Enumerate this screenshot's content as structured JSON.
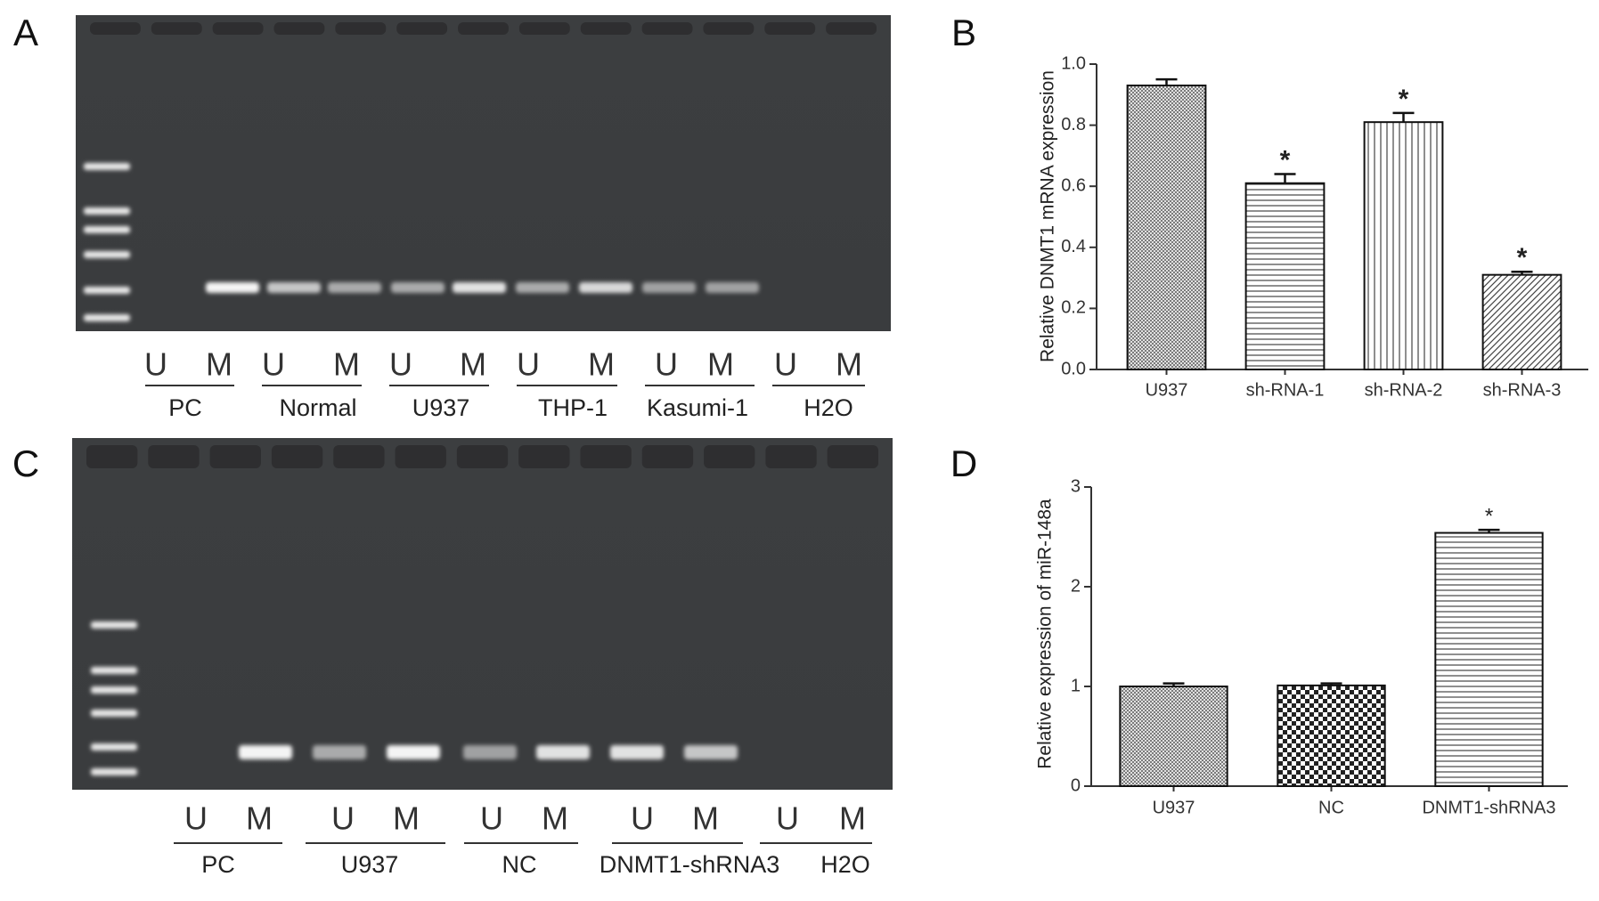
{
  "gels": [
    {
      "panel_label": "A",
      "lanes": [
        "U",
        "M",
        "U",
        "M",
        "U",
        "M",
        "U",
        "M",
        "U",
        "M",
        "U",
        "M"
      ],
      "groups": [
        "PC",
        "Normal",
        "U937",
        "THP-1",
        "Kasumi-1",
        "H2O"
      ]
    },
    {
      "panel_label": "C",
      "lanes": [
        "U",
        "M",
        "U",
        "M",
        "U",
        "M",
        "U",
        "M",
        "U",
        "M"
      ],
      "groups": [
        "PC",
        "U937",
        "NC",
        "DNMT1-shRNA3",
        "H2O"
      ]
    }
  ],
  "chart_data": [
    {
      "type": "bar",
      "panel_label": "B",
      "y_label": "Relative DNMT1 mRNA expression",
      "categories": [
        "U937",
        "sh-RNA-1",
        "sh-RNA-2",
        "sh-RNA-3"
      ],
      "values": [
        0.93,
        0.61,
        0.81,
        0.31
      ],
      "errors": [
        0.02,
        0.03,
        0.03,
        0.01
      ],
      "markers": [
        null,
        "*",
        "*",
        "*"
      ],
      "patterns": [
        "cross",
        "horizontal",
        "vertical",
        "diagonal"
      ],
      "ylim": [
        0,
        1.0
      ],
      "yticks": [
        {
          "value": 0,
          "label": "0.0"
        },
        0.2,
        0.4,
        0.6,
        0.8,
        {
          "value": 1.0,
          "label": "1.0"
        }
      ]
    },
    {
      "type": "bar",
      "panel_label": "D",
      "y_label": "Relative expression of miR-148a",
      "categories": [
        "U937",
        "NC",
        "DNMT1-shRNA3"
      ],
      "values": [
        1.0,
        1.01,
        2.54
      ],
      "errors": [
        0.03,
        0.02,
        0.03
      ],
      "markers": [
        null,
        null,
        "*"
      ],
      "patterns": [
        "cross",
        "checker",
        "horizontal"
      ],
      "ylim": [
        0,
        3
      ],
      "yticks": [
        0,
        1,
        2,
        3
      ]
    }
  ]
}
